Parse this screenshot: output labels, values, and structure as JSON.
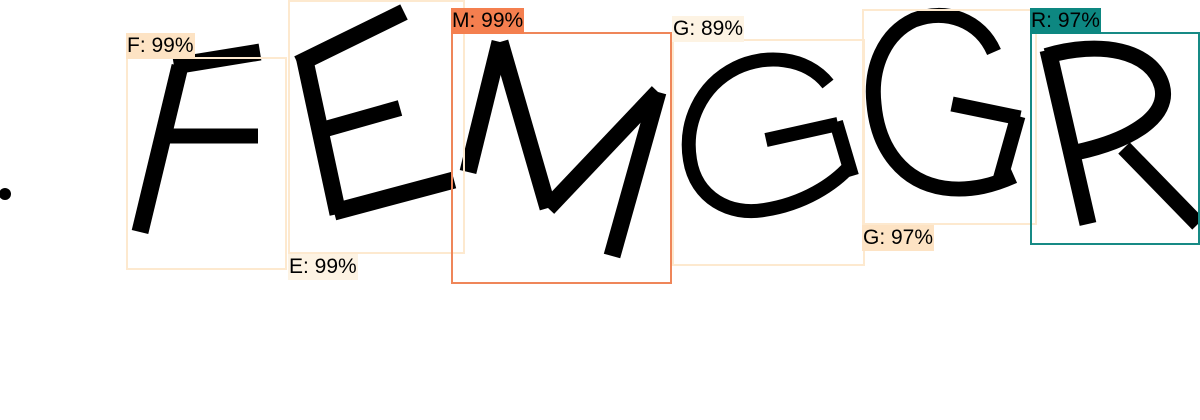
{
  "colors": {
    "background": "#ffffff",
    "glyph": "#000000",
    "box_light": "#fde9cf",
    "label_light": "#fde3c4",
    "box_orange": "#ef8659",
    "label_orange": "#f47f4f",
    "box_teal": "#168a85",
    "label_teal": "#0d8781"
  },
  "detections": [
    {
      "id": "f",
      "char": "F",
      "confidence": 0.99,
      "text": "F: 99%",
      "box_color": "#fde9cf",
      "label_color": "#fde3c4",
      "label_position": "top"
    },
    {
      "id": "e",
      "char": "E",
      "confidence": 0.99,
      "text": "E: 99%",
      "box_color": "#fde9cf",
      "label_color": "#fdf3e3",
      "label_position": "bottom"
    },
    {
      "id": "m",
      "char": "M",
      "confidence": 0.99,
      "text": "M: 99%",
      "box_color": "#ef8659",
      "label_color": "#f47f4f",
      "label_position": "top"
    },
    {
      "id": "g1",
      "char": "G",
      "confidence": 0.89,
      "text": "G: 89%",
      "box_color": "#fde9cf",
      "label_color": "#fdf3e3",
      "label_position": "top"
    },
    {
      "id": "g2",
      "char": "G",
      "confidence": 0.97,
      "text": "G: 97%",
      "box_color": "#fde9cf",
      "label_color": "#fde3c4",
      "label_position": "bottom"
    },
    {
      "id": "r",
      "char": "R",
      "confidence": 0.97,
      "text": "R: 97%",
      "box_color": "#168a85",
      "label_color": "#0d8781",
      "label_position": "top"
    }
  ]
}
